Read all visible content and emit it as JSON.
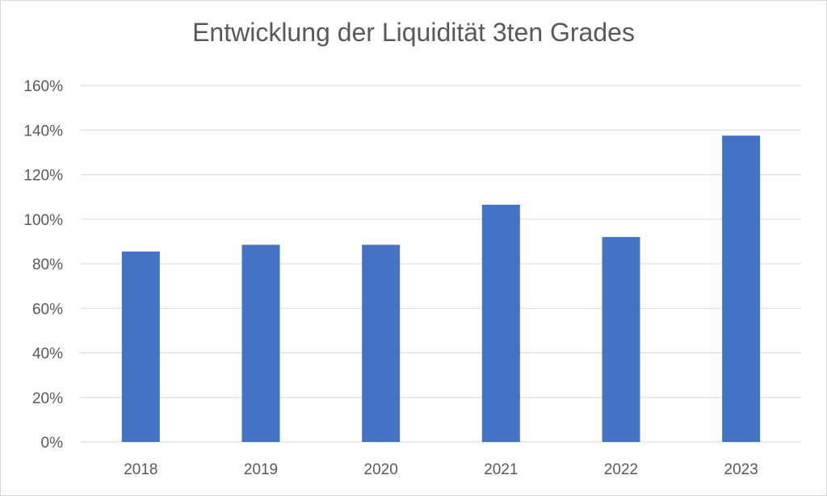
{
  "chart_data": {
    "type": "bar",
    "title": "Entwicklung der Liquidität 3ten Grades",
    "categories": [
      "2018",
      "2019",
      "2020",
      "2021",
      "2022",
      "2023"
    ],
    "series": [
      {
        "values": [
          85.5,
          88.5,
          88.5,
          106.5,
          92,
          137.5
        ]
      }
    ],
    "y_ticks": [
      "0%",
      "20%",
      "40%",
      "60%",
      "80%",
      "100%",
      "120%",
      "140%",
      "160%"
    ],
    "ylim": [
      0,
      160
    ],
    "grid": true,
    "legend": "none",
    "colors": {
      "bar": "#4472c4",
      "grid": "#d9d9d9",
      "text": "#595959"
    }
  }
}
